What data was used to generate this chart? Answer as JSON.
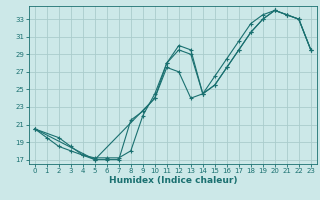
{
  "title": "",
  "xlabel": "Humidex (Indice chaleur)",
  "bg_color": "#cce8e8",
  "grid_color": "#aacccc",
  "line_color": "#1a7070",
  "spine_color": "#1a7070",
  "xlim": [
    -0.5,
    23.5
  ],
  "ylim": [
    16.5,
    34.5
  ],
  "xticks": [
    0,
    1,
    2,
    3,
    4,
    5,
    6,
    7,
    8,
    9,
    10,
    11,
    12,
    13,
    14,
    15,
    16,
    17,
    18,
    19,
    20,
    21,
    22,
    23
  ],
  "yticks": [
    17,
    19,
    21,
    23,
    25,
    27,
    29,
    31,
    33
  ],
  "line1_x": [
    0,
    1,
    2,
    3,
    4,
    5,
    6,
    7,
    8,
    9,
    10,
    11,
    12,
    13,
    14,
    15,
    16,
    17,
    18,
    19,
    20,
    21,
    22,
    23
  ],
  "line1_y": [
    20.5,
    19.5,
    18.5,
    18.0,
    17.5,
    17.2,
    17.2,
    17.2,
    18.0,
    22.0,
    24.5,
    28.0,
    30.0,
    29.5,
    24.5,
    25.5,
    27.5,
    29.5,
    31.5,
    33.0,
    34.0,
    33.5,
    33.0,
    29.5
  ],
  "line2_x": [
    0,
    2,
    3,
    4,
    5,
    6,
    7,
    8,
    9,
    10,
    11,
    12,
    13,
    14,
    15,
    16,
    17,
    18,
    19,
    20,
    21,
    22,
    23
  ],
  "line2_y": [
    20.5,
    19.5,
    18.5,
    17.5,
    17.0,
    17.0,
    17.0,
    21.5,
    22.5,
    24.0,
    27.5,
    27.0,
    24.0,
    24.5,
    26.5,
    28.5,
    30.5,
    32.5,
    33.5,
    34.0,
    33.5,
    33.0,
    29.5
  ],
  "line3_x": [
    0,
    5,
    10,
    11,
    12,
    13,
    14,
    15,
    16,
    17,
    18,
    19,
    20,
    21,
    22,
    23
  ],
  "line3_y": [
    20.5,
    17.0,
    24.0,
    28.0,
    29.5,
    29.0,
    24.5,
    25.5,
    27.5,
    29.5,
    31.5,
    33.0,
    34.0,
    33.5,
    33.0,
    29.5
  ],
  "tick_labelsize": 5.0,
  "xlabel_fontsize": 6.5,
  "marker_size": 3.5,
  "line_width": 0.8
}
